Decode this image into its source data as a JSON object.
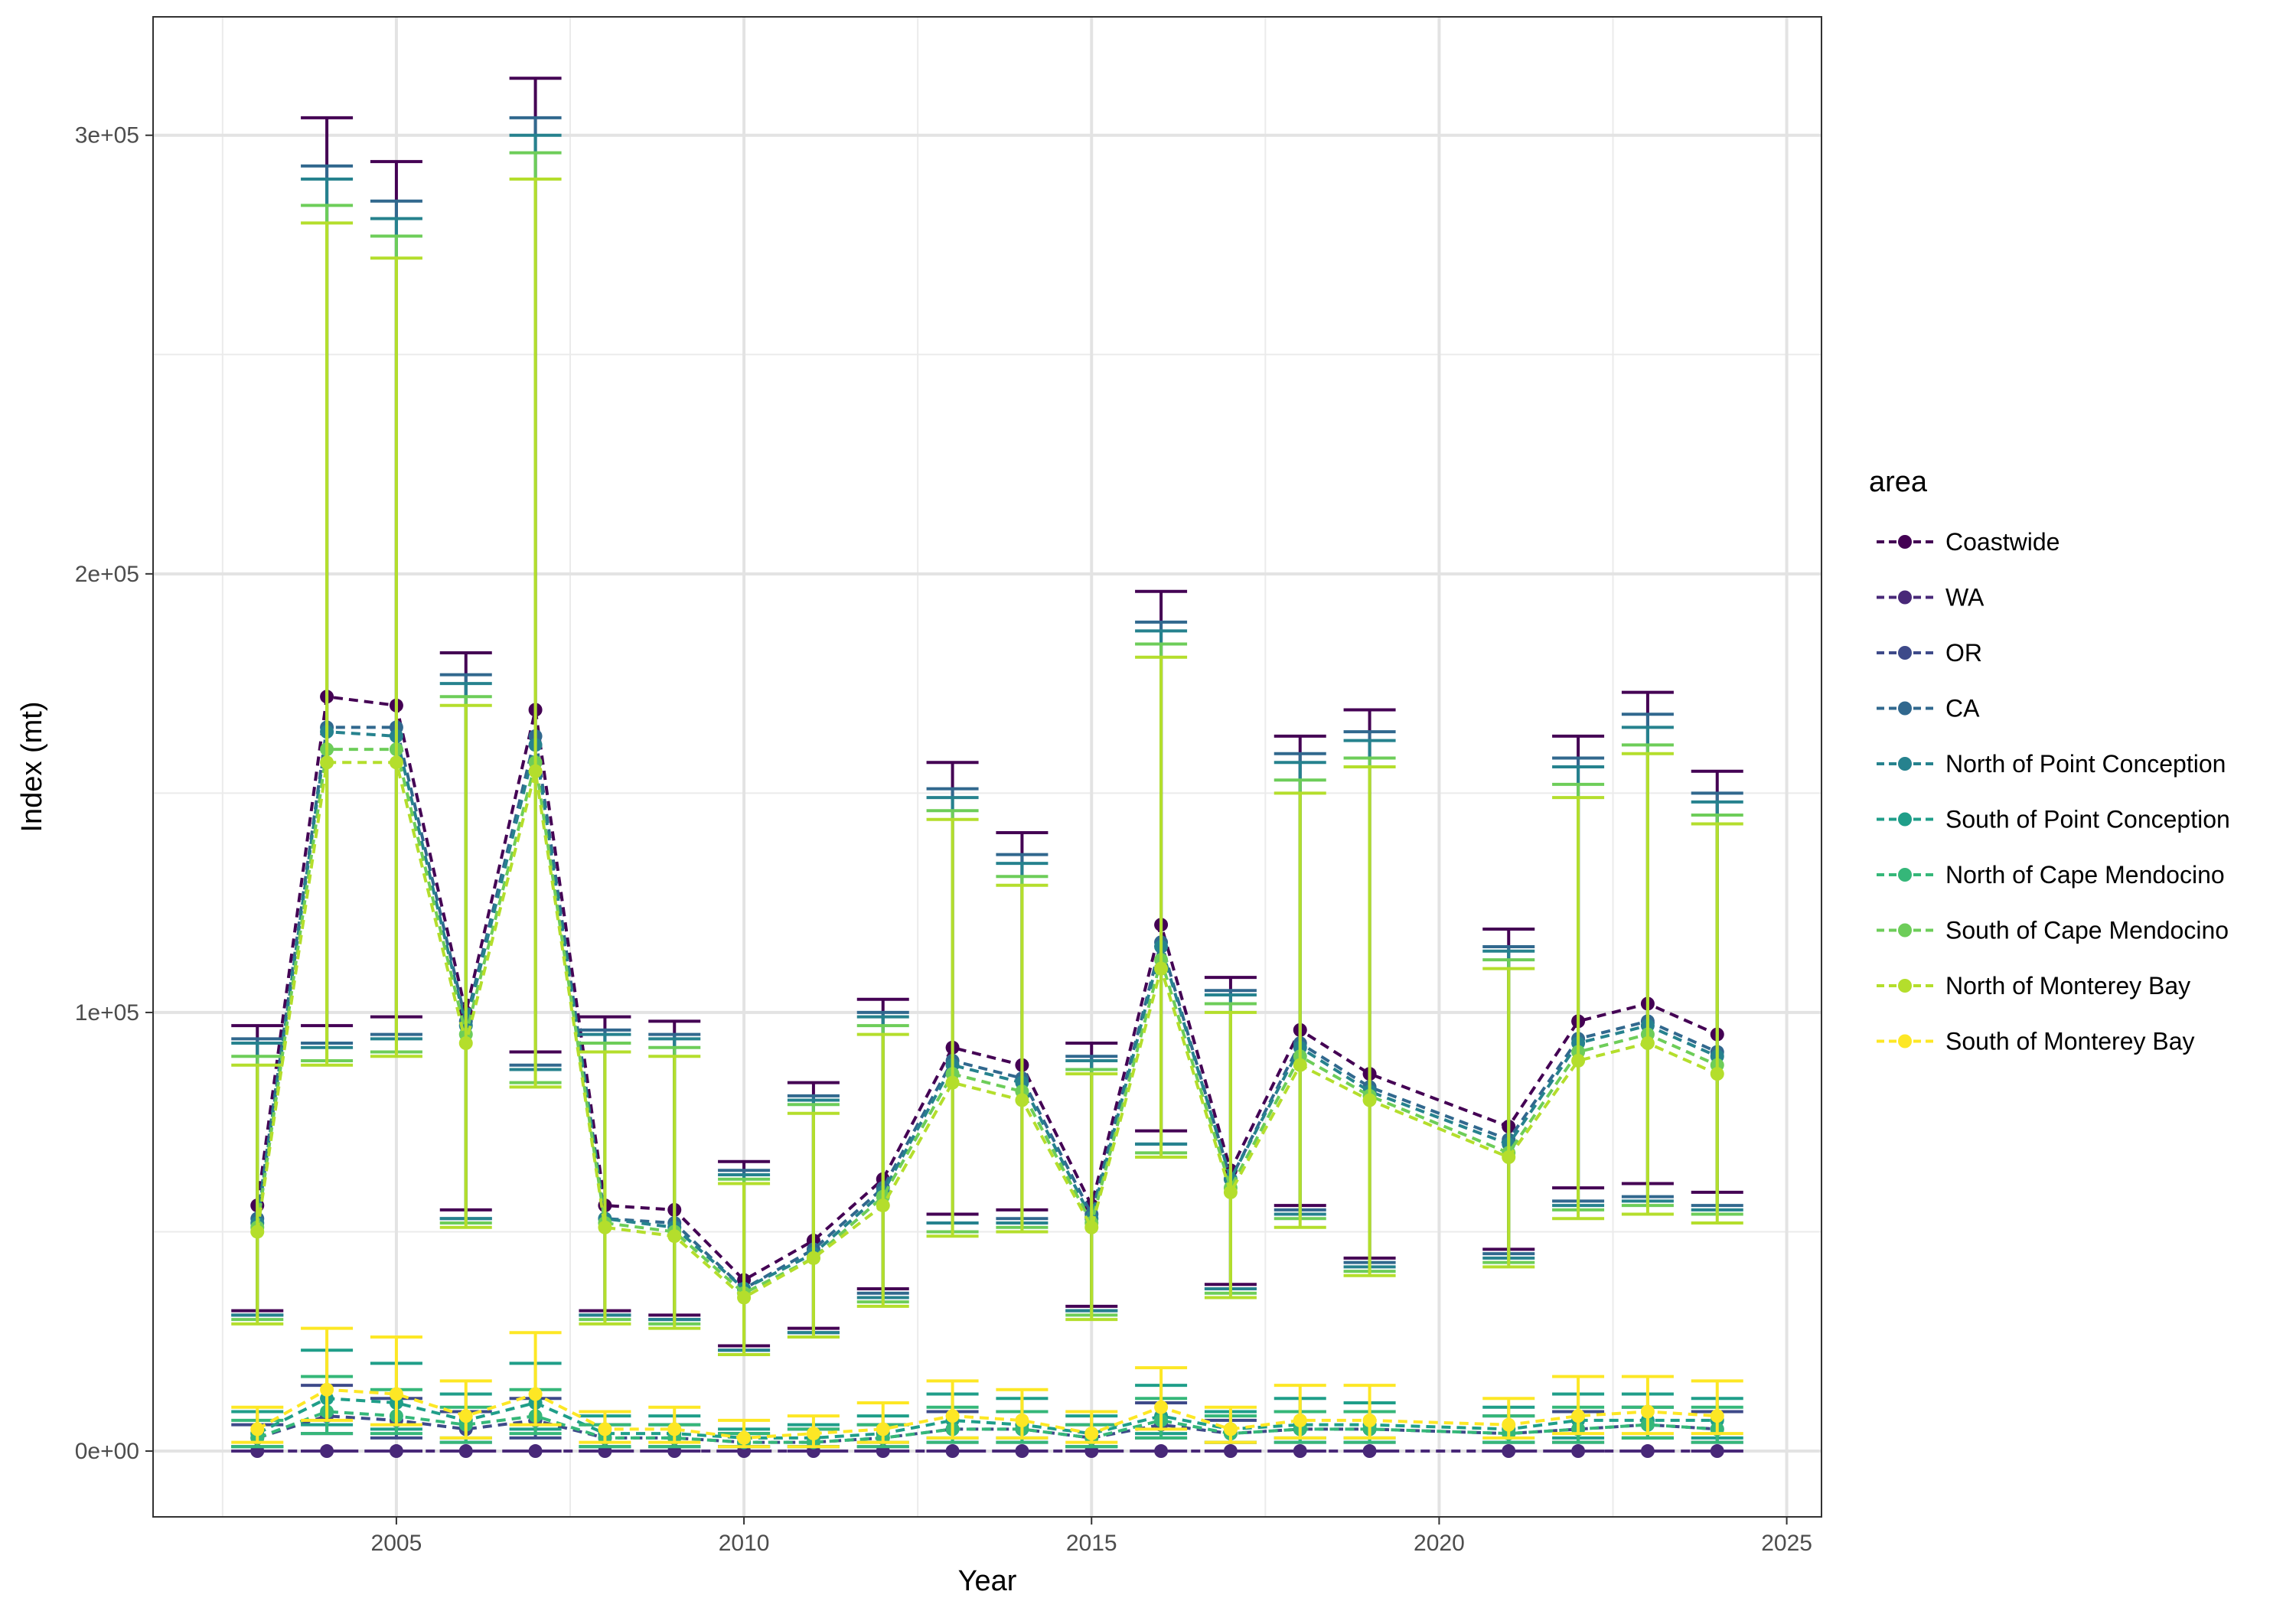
{
  "chart_data": {
    "type": "line",
    "xlabel": "Year",
    "ylabel": "Index (mt)",
    "xlim": [
      2001.5,
      2025.5
    ],
    "ylim": [
      -15000,
      327000
    ],
    "x_ticks": [
      2005,
      2010,
      2015,
      2020,
      2025
    ],
    "x_tick_labels": [
      "2005",
      "2010",
      "2015",
      "2020",
      "2025"
    ],
    "y_ticks": [
      0,
      100000,
      200000,
      300000
    ],
    "y_tick_labels": [
      "0e+00",
      "1e+05",
      "2e+05",
      "3e+05"
    ],
    "grid": true,
    "legend": {
      "title": "area",
      "position": "right"
    },
    "x": [
      2003,
      2004,
      2005,
      2006,
      2007,
      2008,
      2009,
      2010,
      2011,
      2012,
      2013,
      2014,
      2015,
      2016,
      2017,
      2018,
      2019,
      2021,
      2022,
      2023,
      2024
    ],
    "series": [
      {
        "name": "Coastwide",
        "color": "#440154",
        "values": [
          56000,
          172000,
          170000,
          100000,
          169000,
          56000,
          55000,
          39000,
          48000,
          62000,
          92000,
          88000,
          56000,
          120000,
          64000,
          96000,
          86000,
          74000,
          98000,
          102000,
          95000
        ],
        "lower": [
          32000,
          97000,
          99000,
          55000,
          91000,
          32000,
          31000,
          24000,
          28000,
          37000,
          54000,
          55000,
          33000,
          73000,
          38000,
          56000,
          44000,
          46000,
          60000,
          61000,
          59000
        ],
        "upper": [
          97000,
          304000,
          294000,
          182000,
          313000,
          99000,
          98000,
          66000,
          84000,
          103000,
          157000,
          141000,
          93000,
          196000,
          108000,
          163000,
          169000,
          119000,
          163000,
          173000,
          155000
        ]
      },
      {
        "name": "WA",
        "color": "#482878",
        "values": [
          0,
          0,
          0,
          0,
          0,
          0,
          0,
          0,
          0,
          0,
          0,
          0,
          0,
          0,
          0,
          0,
          0,
          0,
          0,
          0,
          0
        ],
        "lower": [
          0,
          0,
          0,
          0,
          0,
          0,
          0,
          0,
          0,
          0,
          0,
          0,
          0,
          0,
          0,
          0,
          0,
          0,
          0,
          0,
          0
        ],
        "upper": [
          0,
          0,
          0,
          0,
          0,
          0,
          0,
          0,
          0,
          0,
          0,
          0,
          0,
          0,
          0,
          0,
          0,
          0,
          0,
          0,
          0
        ]
      },
      {
        "name": "OR",
        "color": "#3E4A89",
        "values": [
          3000,
          8000,
          7000,
          5000,
          7000,
          3000,
          3000,
          2000,
          2000,
          3000,
          5000,
          5000,
          3000,
          6000,
          4000,
          5000,
          5000,
          4000,
          5000,
          6000,
          5000
        ],
        "lower": [
          1000,
          4000,
          3000,
          2000,
          3000,
          1000,
          1000,
          1000,
          1000,
          1000,
          2000,
          2000,
          1000,
          3000,
          2000,
          2000,
          2000,
          2000,
          2000,
          3000,
          2000
        ],
        "upper": [
          6000,
          15000,
          12000,
          9000,
          12000,
          6000,
          6000,
          4000,
          5000,
          6000,
          9000,
          9000,
          6000,
          11000,
          7000,
          9000,
          9000,
          8000,
          9000,
          10000,
          9000
        ]
      },
      {
        "name": "CA",
        "color": "#31688E",
        "values": [
          53000,
          165000,
          165000,
          98000,
          163000,
          53000,
          52000,
          37000,
          46000,
          60000,
          89000,
          85000,
          54000,
          116000,
          62000,
          93000,
          83000,
          71000,
          94000,
          98000,
          91000
        ],
        "lower": [
          31000,
          93000,
          95000,
          53000,
          88000,
          31000,
          30000,
          23000,
          27000,
          36000,
          52000,
          53000,
          32000,
          70000,
          37000,
          55000,
          43000,
          45000,
          57000,
          58000,
          56000
        ],
        "upper": [
          94000,
          293000,
          285000,
          177000,
          304000,
          96000,
          95000,
          64000,
          81000,
          100000,
          151000,
          136000,
          90000,
          189000,
          105000,
          159000,
          164000,
          115000,
          158000,
          168000,
          150000
        ]
      },
      {
        "name": "North of Point Conception",
        "color": "#26828E",
        "values": [
          52000,
          164000,
          163000,
          97000,
          161000,
          53000,
          51000,
          37000,
          45000,
          59000,
          88000,
          84000,
          53000,
          115000,
          62000,
          92000,
          82000,
          70000,
          93000,
          97000,
          90000
        ],
        "lower": [
          31000,
          92000,
          94000,
          53000,
          87000,
          31000,
          30000,
          23000,
          27000,
          35000,
          52000,
          52000,
          32000,
          70000,
          37000,
          54000,
          42000,
          44000,
          56000,
          57000,
          55000
        ],
        "upper": [
          93000,
          290000,
          281000,
          175000,
          300000,
          95000,
          94000,
          63000,
          80000,
          99000,
          149000,
          134000,
          89000,
          187000,
          104000,
          157000,
          162000,
          114000,
          156000,
          165000,
          148000
        ]
      },
      {
        "name": "South of Point Conception",
        "color": "#1F9E89",
        "values": [
          4000,
          12000,
          11000,
          7000,
          11000,
          4000,
          4000,
          3000,
          3000,
          4000,
          7000,
          6000,
          4000,
          8000,
          5000,
          6000,
          6000,
          5000,
          7000,
          7000,
          7000
        ],
        "lower": [
          1000,
          6000,
          5000,
          3000,
          5000,
          1000,
          1000,
          1000,
          1000,
          2000,
          3000,
          3000,
          1000,
          4000,
          2000,
          3000,
          3000,
          2000,
          3000,
          3000,
          3000
        ],
        "upper": [
          9000,
          23000,
          20000,
          13000,
          20000,
          8000,
          8000,
          5000,
          6000,
          8000,
          13000,
          12000,
          8000,
          15000,
          9000,
          12000,
          11000,
          10000,
          13000,
          13000,
          12000
        ]
      },
      {
        "name": "North of Cape Mendocino",
        "color": "#35B779",
        "values": [
          3000,
          9000,
          8000,
          6000,
          8000,
          3000,
          3000,
          2000,
          2000,
          3000,
          5000,
          5000,
          3000,
          7000,
          4000,
          5000,
          5000,
          4000,
          5000,
          6000,
          5000
        ],
        "lower": [
          1000,
          4000,
          4000,
          2000,
          4000,
          1000,
          1000,
          1000,
          1000,
          1000,
          2000,
          2000,
          1000,
          3000,
          2000,
          2000,
          2000,
          2000,
          2000,
          3000,
          2000
        ],
        "upper": [
          7000,
          17000,
          14000,
          10000,
          14000,
          6000,
          6000,
          4000,
          5000,
          6000,
          10000,
          9000,
          6000,
          12000,
          8000,
          9000,
          9000,
          8000,
          10000,
          10000,
          10000
        ]
      },
      {
        "name": "South of Cape Mendocino",
        "color": "#6DCD59",
        "values": [
          51000,
          160000,
          160000,
          95000,
          157000,
          52000,
          50000,
          36000,
          44000,
          58000,
          86000,
          82000,
          52000,
          112000,
          60000,
          90000,
          81000,
          68000,
          91000,
          95000,
          88000
        ],
        "lower": [
          30000,
          89000,
          91000,
          52000,
          84000,
          30000,
          29000,
          22000,
          26000,
          34000,
          50000,
          51000,
          31000,
          68000,
          36000,
          53000,
          41000,
          43000,
          55000,
          56000,
          54000
        ],
        "upper": [
          90000,
          284000,
          277000,
          172000,
          296000,
          93000,
          92000,
          62000,
          79000,
          97000,
          146000,
          131000,
          87000,
          184000,
          102000,
          153000,
          158000,
          112000,
          152000,
          161000,
          145000
        ]
      },
      {
        "name": "North of Monterey Bay",
        "color": "#B4DE2C",
        "values": [
          50000,
          157000,
          157000,
          93000,
          155000,
          51000,
          49000,
          35000,
          44000,
          56000,
          84000,
          80000,
          51000,
          110000,
          59000,
          88000,
          80000,
          67000,
          89000,
          93000,
          86000
        ],
        "lower": [
          29000,
          88000,
          90000,
          51000,
          83000,
          29000,
          28000,
          22000,
          26000,
          33000,
          49000,
          50000,
          30000,
          67000,
          35000,
          51000,
          40000,
          42000,
          53000,
          54000,
          52000
        ],
        "upper": [
          88000,
          280000,
          272000,
          170000,
          290000,
          91000,
          90000,
          61000,
          77000,
          95000,
          144000,
          129000,
          86000,
          181000,
          100000,
          150000,
          156000,
          110000,
          149000,
          159000,
          143000
        ]
      },
      {
        "name": "South of Monterey Bay",
        "color": "#FDE725",
        "values": [
          5000,
          14000,
          13000,
          8000,
          13000,
          5000,
          5000,
          3000,
          4000,
          5000,
          8000,
          7000,
          4000,
          10000,
          5000,
          7000,
          7000,
          6000,
          8000,
          9000,
          8000
        ],
        "lower": [
          2000,
          7000,
          6000,
          3000,
          6000,
          2000,
          2000,
          1000,
          1000,
          2000,
          3000,
          3000,
          2000,
          5000,
          2000,
          3000,
          3000,
          3000,
          4000,
          4000,
          4000
        ],
        "upper": [
          10000,
          28000,
          26000,
          16000,
          27000,
          9000,
          10000,
          7000,
          8000,
          11000,
          16000,
          14000,
          9000,
          19000,
          10000,
          15000,
          15000,
          12000,
          17000,
          17000,
          16000
        ]
      }
    ]
  }
}
